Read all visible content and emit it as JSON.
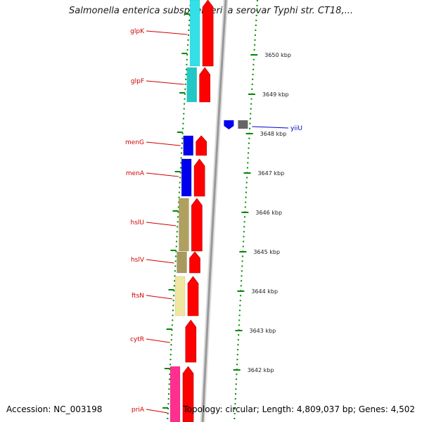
{
  "title": "Salmonella enterica subsp. enterica serovar Typhi str. CT18,...",
  "accession_text": "Accession: NC_003198",
  "topology_text": "Topology: circular; Length: 4,809,037 bp; Genes: 4,502",
  "colors": {
    "forward_cds": "#ff0000",
    "label_red": "#d00000",
    "label_blue": "#0000cc",
    "tick_green": "#008800",
    "backbone": "#999999"
  },
  "genes": [
    {
      "name": "glpK",
      "color": "#33e0e8"
    },
    {
      "name": "glpF",
      "color": "#22c8c8"
    },
    {
      "name": "menG",
      "color": "#0000ee"
    },
    {
      "name": "menA",
      "color": "#0000ee"
    },
    {
      "name": "hslU",
      "color": "#b0a060"
    },
    {
      "name": "hslV",
      "color": "#a89a5e"
    },
    {
      "name": "ftsN",
      "color": "#f0e6a0"
    },
    {
      "name": "cytR",
      "color": ""
    },
    {
      "name": "priA",
      "color": "#ff2f8f"
    }
  ],
  "reverse_gene": {
    "name": "yiiU",
    "colors": [
      "#0000ee",
      "#666666"
    ]
  },
  "ticks": [
    "3650 kbp",
    "3649 kbp",
    "3648 kbp",
    "3647 kbp",
    "3646 kbp",
    "3645 kbp",
    "3644 kbp",
    "3643 kbp",
    "3642 kbp"
  ]
}
